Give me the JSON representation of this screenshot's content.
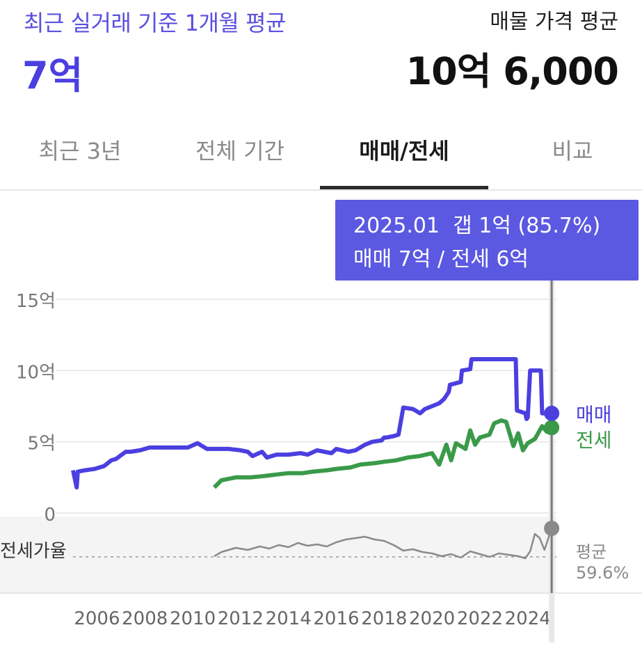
{
  "header": {
    "recent_label": "최근 실거래 기준 1개월 평균",
    "recent_value": "7억",
    "listing_label": "매물 가격 평균",
    "listing_value": "10억 6,000"
  },
  "tabs": [
    {
      "label": "최근 3년",
      "active": false
    },
    {
      "label": "전체 기간",
      "active": false
    },
    {
      "label": "매매/전세",
      "active": true
    },
    {
      "label": "비교",
      "active": false
    }
  ],
  "tooltip": {
    "line1": "2025.01  갭 1억 (85.7%)",
    "line2": "매매 7억 / 전세 6억"
  },
  "colors": {
    "sale": "#4b3fe0",
    "jeonse": "#3a9a4a",
    "ratio": "#8a8a8a",
    "tooltip_bg": "#5b59e1"
  },
  "chart_data": {
    "type": "line",
    "y_ticks": [
      "15억",
      "10억",
      "5억",
      "0"
    ],
    "ylim": [
      0,
      15
    ],
    "xlim": [
      2005,
      2025.2
    ],
    "x_ticks": [
      "2006",
      "2008",
      "2010",
      "2012",
      "2014",
      "2016",
      "2018",
      "2020",
      "2022",
      "2024"
    ],
    "grid": true,
    "series": [
      {
        "name": "매매",
        "x": [
          2005.0,
          2005.15,
          2005.2,
          2005.5,
          2005.9,
          2006.3,
          2006.6,
          2006.8,
          2007.2,
          2007.4,
          2007.8,
          2008.2,
          2009.0,
          2009.5,
          2009.8,
          2010.2,
          2010.6,
          2011.0,
          2011.5,
          2012.0,
          2012.3,
          2012.5,
          2012.9,
          2013.1,
          2013.5,
          2014.0,
          2014.5,
          2014.8,
          2015.2,
          2015.8,
          2016.0,
          2016.5,
          2016.8,
          2017.2,
          2017.5,
          2017.9,
          2018.0,
          2018.1,
          2018.4,
          2018.6,
          2018.8,
          2019.2,
          2019.5,
          2019.7,
          2020.0,
          2020.3,
          2020.5,
          2020.7,
          2020.75,
          2021.2,
          2021.25,
          2021.6,
          2021.65,
          2022.0,
          2022.5,
          2023.0,
          2023.2,
          2023.5,
          2023.55,
          2023.9,
          2023.95,
          2024.0,
          2024.1,
          2024.4,
          2024.45,
          2024.55,
          2024.6,
          2025.0
        ],
        "values": [
          3.0,
          1.8,
          2.9,
          3.0,
          3.1,
          3.3,
          3.7,
          3.8,
          4.3,
          4.3,
          4.4,
          4.6,
          4.6,
          4.6,
          4.6,
          4.9,
          4.5,
          4.5,
          4.5,
          4.4,
          4.3,
          4.0,
          4.3,
          3.9,
          4.1,
          4.1,
          4.2,
          4.1,
          4.4,
          4.2,
          4.5,
          4.3,
          4.4,
          4.8,
          5.0,
          5.1,
          5.3,
          5.3,
          5.4,
          5.5,
          7.4,
          7.3,
          7.0,
          7.3,
          7.5,
          7.7,
          8.0,
          8.5,
          9.0,
          9.2,
          10.0,
          10.1,
          10.8,
          10.8,
          10.8,
          10.8,
          10.8,
          10.8,
          7.2,
          7.0,
          6.6,
          6.7,
          10.0,
          10.0,
          10.0,
          10.0,
          7.0,
          7.0
        ]
      },
      {
        "name": "전세",
        "x": [
          2010.9,
          2011.2,
          2011.8,
          2012.4,
          2013.0,
          2013.5,
          2014.0,
          2014.6,
          2015.0,
          2015.6,
          2016.0,
          2016.6,
          2017.0,
          2017.6,
          2018.0,
          2018.5,
          2019.0,
          2019.5,
          2020.0,
          2020.3,
          2020.6,
          2020.8,
          2021.0,
          2021.2,
          2021.4,
          2021.6,
          2021.8,
          2022.0,
          2022.4,
          2022.6,
          2022.9,
          2023.1,
          2023.4,
          2023.6,
          2023.8,
          2024.0,
          2024.3,
          2024.6,
          2024.8,
          2025.0
        ],
        "values": [
          1.8,
          2.3,
          2.5,
          2.5,
          2.6,
          2.7,
          2.8,
          2.8,
          2.9,
          3.0,
          3.1,
          3.2,
          3.4,
          3.5,
          3.6,
          3.7,
          3.9,
          4.0,
          4.2,
          3.4,
          4.8,
          3.7,
          4.9,
          4.7,
          4.5,
          5.8,
          4.8,
          5.3,
          5.5,
          6.3,
          6.5,
          6.4,
          4.7,
          5.6,
          4.4,
          4.9,
          5.2,
          6.1,
          5.7,
          6.0
        ]
      },
      {
        "name": "전세가율",
        "x": [
          2010.9,
          2011.2,
          2011.8,
          2012.3,
          2012.8,
          2013.2,
          2013.6,
          2014.0,
          2014.4,
          2014.8,
          2015.2,
          2015.6,
          2016.0,
          2016.4,
          2016.8,
          2017.2,
          2017.6,
          2018.0,
          2018.4,
          2018.8,
          2019.2,
          2019.6,
          2020.0,
          2020.4,
          2020.8,
          2021.2,
          2021.6,
          2022.0,
          2022.4,
          2022.8,
          2023.2,
          2023.6,
          2023.9,
          2024.1,
          2024.3,
          2024.5,
          2024.7,
          2025.0
        ],
        "values": [
          0.46,
          0.52,
          0.58,
          0.55,
          0.6,
          0.57,
          0.62,
          0.59,
          0.65,
          0.61,
          0.63,
          0.6,
          0.66,
          0.7,
          0.72,
          0.74,
          0.7,
          0.68,
          0.62,
          0.54,
          0.56,
          0.52,
          0.5,
          0.46,
          0.49,
          0.44,
          0.53,
          0.49,
          0.45,
          0.5,
          0.48,
          0.46,
          0.43,
          0.53,
          0.78,
          0.72,
          0.55,
          0.86
        ]
      }
    ],
    "end_labels": [
      "매매",
      "전세"
    ],
    "ratio_label": "전세가율",
    "avg_label": "평균",
    "avg_value": "59.6%"
  }
}
